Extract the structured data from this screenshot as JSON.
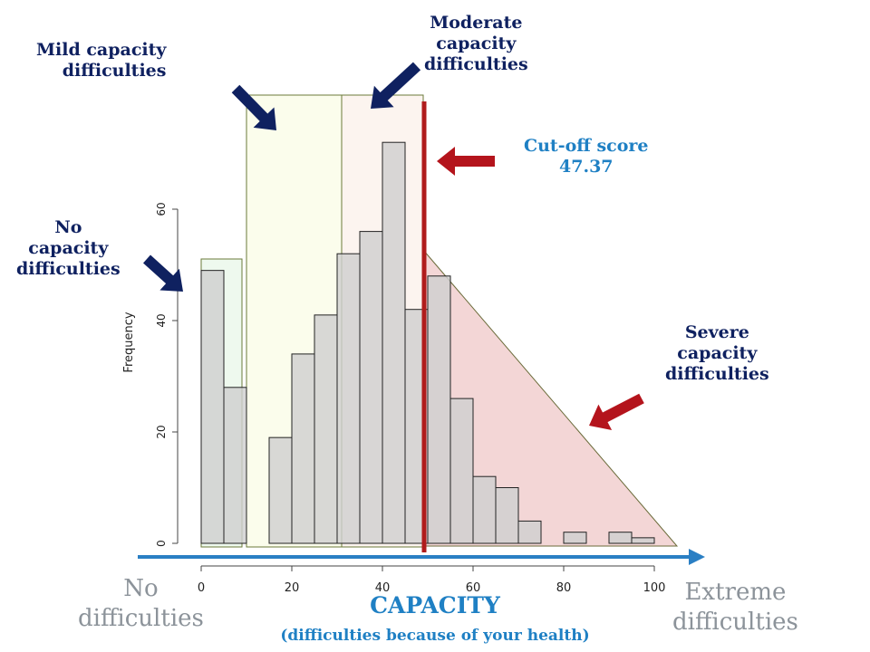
{
  "colors": {
    "no_region": "#eef9ee",
    "mild_region": "#fbfdec",
    "moderate_region": "#fcf4ef",
    "severe_region": "#f3d6d6",
    "bar_fill": "#cfcfcf",
    "cutoff_line": "#b01c1c",
    "navy_arrow": "#0f2160",
    "red_arrow": "#b4141c",
    "axis_arrow": "#2a7fc4",
    "dark_label": "#0f2160",
    "blue_label": "#1f80c4",
    "grey_label": "#8c939a"
  },
  "annotations": {
    "no_capacity": [
      "No",
      "capacity",
      "difficulties"
    ],
    "mild_capacity": [
      "Mild capacity",
      "difficulties"
    ],
    "moderate_capacity": [
      "Moderate",
      "capacity",
      "difficulties"
    ],
    "severe_capacity": [
      "Severe",
      "capacity",
      "difficulties"
    ],
    "cutoff": [
      "Cut-off score",
      "47.37"
    ],
    "no_difficulties": [
      "No",
      "difficulties"
    ],
    "extreme_difficulties": [
      "Extreme",
      "difficulties"
    ],
    "capacity_title": "CAPACITY",
    "capacity_subtitle": "(difficulties because of your health)"
  },
  "chart_data": {
    "type": "bar",
    "ylabel": "Frequency",
    "bin_width": 5,
    "bin_starts": [
      0,
      5,
      10,
      15,
      20,
      25,
      30,
      35,
      40,
      45,
      50,
      55,
      60,
      65,
      70,
      75,
      80,
      85,
      90,
      95
    ],
    "values": [
      49,
      28,
      0,
      19,
      34,
      41,
      52,
      56,
      72,
      42,
      48,
      26,
      12,
      10,
      4,
      0,
      2,
      0,
      2,
      1
    ],
    "xlim": [
      0,
      100
    ],
    "ylim": [
      0,
      60
    ],
    "x_ticks": [
      0,
      20,
      40,
      60,
      80,
      100
    ],
    "y_ticks": [
      0,
      20,
      40,
      60
    ],
    "cutoff": 47.37,
    "regions": [
      {
        "name": "No capacity difficulties",
        "x": [
          0,
          9
        ]
      },
      {
        "name": "Mild capacity difficulties",
        "x": [
          10,
          31
        ]
      },
      {
        "name": "Moderate capacity difficulties",
        "x": [
          31,
          49
        ]
      },
      {
        "name": "Severe capacity difficulties",
        "x": [
          49,
          105
        ]
      }
    ]
  }
}
